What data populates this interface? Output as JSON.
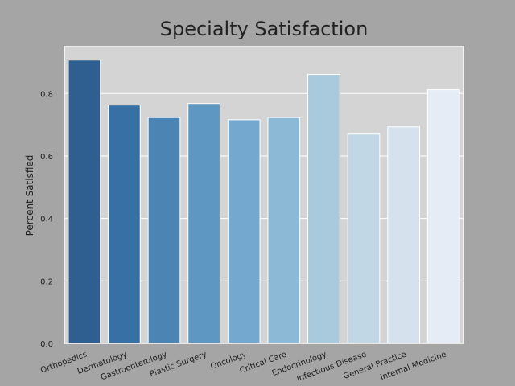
{
  "chart_data": {
    "type": "bar",
    "title": "Specialty Satisfaction",
    "xlabel": "",
    "ylabel": "Percent Satisfied",
    "categories": [
      "Orthopedics",
      "Dermatology",
      "Gastroenterology",
      "Plastic Surgery",
      "Oncology",
      "Critical Care",
      "Endocrinology",
      "Infectious Disease",
      "General Practice",
      "Internal Medicine"
    ],
    "values": [
      0.907,
      0.763,
      0.723,
      0.768,
      0.716,
      0.723,
      0.861,
      0.67,
      0.693,
      0.812
    ],
    "ylim": [
      0,
      0.95
    ],
    "yticks": [
      "0.0",
      "0.2",
      "0.4",
      "0.6",
      "0.8"
    ],
    "grid": true,
    "legend": "none",
    "colors": [
      "#2f5f90",
      "#3770a4",
      "#4c85b4",
      "#5e97c1",
      "#74a8ce",
      "#8cb9d6",
      "#a9c9dc",
      "#c2d7e5",
      "#d5e1ec",
      "#e5ecf5"
    ],
    "plot_background": "#d4d4d4",
    "figure_background": "#a5a5a5"
  }
}
